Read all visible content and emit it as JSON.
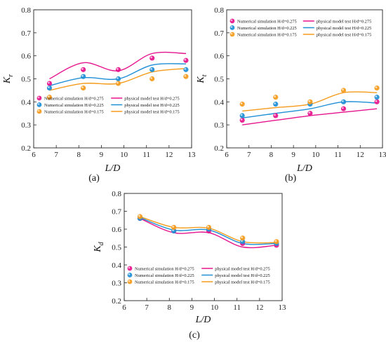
{
  "figure": {
    "colors": {
      "h275": "#e6148c",
      "h225": "#1f8fd6",
      "h175": "#f59b1c"
    }
  },
  "chart_data": [
    {
      "type": "scatter",
      "panel_label": "(a)",
      "ylabel": {
        "main": "K",
        "sub": "r"
      },
      "xlabel": "L/D",
      "xlim": [
        6,
        13
      ],
      "ylim": [
        0.2,
        0.8
      ],
      "xticks": [
        "6",
        "7",
        "8",
        "9",
        "10",
        "11",
        "12",
        "13"
      ],
      "yticks": [
        "0.2",
        "0.3",
        "0.4",
        "0.5",
        "0.6",
        "0.7",
        "0.8"
      ],
      "legend_position": "bottom",
      "series": [
        {
          "name": "Numerical simulation H/d=0.275",
          "kind": "points",
          "color_key": "h275",
          "x": [
            6.7,
            8.2,
            9.75,
            11.25,
            12.75
          ],
          "y": [
            0.48,
            0.54,
            0.54,
            0.59,
            0.58
          ]
        },
        {
          "name": "Numerical simulation H/d=0.225",
          "kind": "points",
          "color_key": "h225",
          "x": [
            6.7,
            8.2,
            9.75,
            11.25,
            12.75
          ],
          "y": [
            0.46,
            0.51,
            0.5,
            0.54,
            0.54
          ]
        },
        {
          "name": "Numerical simulation H/d=0.175",
          "kind": "points",
          "color_key": "h175",
          "x": [
            6.7,
            8.2,
            9.75,
            11.25,
            12.75
          ],
          "y": [
            0.42,
            0.46,
            0.48,
            0.5,
            0.51
          ]
        },
        {
          "name": "physical model test H/d=0.275",
          "kind": "line",
          "color_key": "h275",
          "x": [
            6.7,
            8.2,
            9.75,
            11.25,
            12.75
          ],
          "y": [
            0.5,
            0.57,
            0.535,
            0.61,
            0.61
          ]
        },
        {
          "name": "physical model test H/d=0.225",
          "kind": "line",
          "color_key": "h225",
          "x": [
            6.7,
            8.2,
            9.75,
            11.25,
            12.75
          ],
          "y": [
            0.47,
            0.505,
            0.5,
            0.56,
            0.565
          ]
        },
        {
          "name": "physical model test H/d=0.175",
          "kind": "line",
          "color_key": "h175",
          "x": [
            6.7,
            8.2,
            9.75,
            11.25,
            12.75
          ],
          "y": [
            0.45,
            0.48,
            0.48,
            0.53,
            0.545
          ]
        }
      ]
    },
    {
      "type": "scatter",
      "panel_label": "(b)",
      "ylabel": {
        "main": "K",
        "sub": "t"
      },
      "xlabel": "L/D",
      "xlim": [
        6,
        13
      ],
      "ylim": [
        0.2,
        0.8
      ],
      "xticks": [
        "6",
        "7",
        "8",
        "9",
        "10",
        "11",
        "12",
        "13"
      ],
      "yticks": [
        "0.2",
        "0.3",
        "0.4",
        "0.5",
        "0.6",
        "0.7",
        "0.8"
      ],
      "legend_position": "top",
      "series": [
        {
          "name": "Numerical simulation H/d=0.275",
          "kind": "points",
          "color_key": "h275",
          "x": [
            6.7,
            8.2,
            9.75,
            11.25,
            12.75
          ],
          "y": [
            0.32,
            0.34,
            0.35,
            0.37,
            0.4
          ]
        },
        {
          "name": "Numerical simulation H/d=0.225",
          "kind": "points",
          "color_key": "h225",
          "x": [
            6.7,
            8.2,
            9.75,
            11.25,
            12.75
          ],
          "y": [
            0.34,
            0.39,
            0.39,
            0.4,
            0.42
          ]
        },
        {
          "name": "Numerical simulation H/d=0.175",
          "kind": "points",
          "color_key": "h175",
          "x": [
            6.7,
            8.2,
            9.75,
            11.25,
            12.75
          ],
          "y": [
            0.39,
            0.42,
            0.4,
            0.45,
            0.46
          ]
        },
        {
          "name": "physical model test H/d=0.275",
          "kind": "line",
          "color_key": "h275",
          "x": [
            6.7,
            8.2,
            9.75,
            11.25,
            12.75
          ],
          "y": [
            0.3,
            0.32,
            0.34,
            0.355,
            0.37
          ]
        },
        {
          "name": "physical model test H/d=0.225",
          "kind": "line",
          "color_key": "h225",
          "x": [
            6.7,
            8.2,
            9.75,
            11.25,
            12.75
          ],
          "y": [
            0.33,
            0.35,
            0.37,
            0.4,
            0.395
          ]
        },
        {
          "name": "physical model test H/d=0.175",
          "kind": "line",
          "color_key": "h175",
          "x": [
            6.7,
            8.2,
            9.75,
            11.25,
            12.75
          ],
          "y": [
            0.36,
            0.375,
            0.39,
            0.44,
            0.44
          ]
        }
      ]
    },
    {
      "type": "scatter",
      "panel_label": "(c)",
      "ylabel": {
        "main": "K",
        "sub": "d"
      },
      "xlabel": "L/D",
      "xlim": [
        6,
        13
      ],
      "ylim": [
        0.2,
        0.8
      ],
      "xticks": [
        "6",
        "7",
        "8",
        "9",
        "10",
        "11",
        "12",
        "13"
      ],
      "yticks": [
        "0.2",
        "0.3",
        "0.4",
        "0.5",
        "0.6",
        "0.7",
        "0.8"
      ],
      "legend_position": "bottom",
      "series": [
        {
          "name": "Numerical simulation H/d=0.275",
          "kind": "points",
          "color_key": "h275",
          "x": [
            6.7,
            8.2,
            9.75,
            11.25,
            12.75
          ],
          "y": [
            0.66,
            0.59,
            0.59,
            0.52,
            0.51
          ]
        },
        {
          "name": "Numerical simulation H/d=0.225",
          "kind": "points",
          "color_key": "h225",
          "x": [
            6.7,
            8.2,
            9.75,
            11.25,
            12.75
          ],
          "y": [
            0.66,
            0.59,
            0.6,
            0.53,
            0.52
          ]
        },
        {
          "name": "Numerical simulation H/d=0.175",
          "kind": "points",
          "color_key": "h175",
          "x": [
            6.7,
            8.2,
            9.75,
            11.25,
            12.75
          ],
          "y": [
            0.67,
            0.61,
            0.61,
            0.55,
            0.53
          ]
        },
        {
          "name": "physical model test H/d=0.275",
          "kind": "line",
          "color_key": "h275",
          "x": [
            6.7,
            8.2,
            9.75,
            11.25,
            12.75
          ],
          "y": [
            0.66,
            0.58,
            0.58,
            0.5,
            0.51
          ]
        },
        {
          "name": "physical model test H/d=0.225",
          "kind": "line",
          "color_key": "h225",
          "x": [
            6.7,
            8.2,
            9.75,
            11.25,
            12.75
          ],
          "y": [
            0.665,
            0.595,
            0.595,
            0.52,
            0.52
          ]
        },
        {
          "name": "physical model test H/d=0.175",
          "kind": "line",
          "color_key": "h175",
          "x": [
            6.7,
            8.2,
            9.75,
            11.25,
            12.75
          ],
          "y": [
            0.67,
            0.61,
            0.605,
            0.53,
            0.525
          ]
        }
      ]
    }
  ]
}
